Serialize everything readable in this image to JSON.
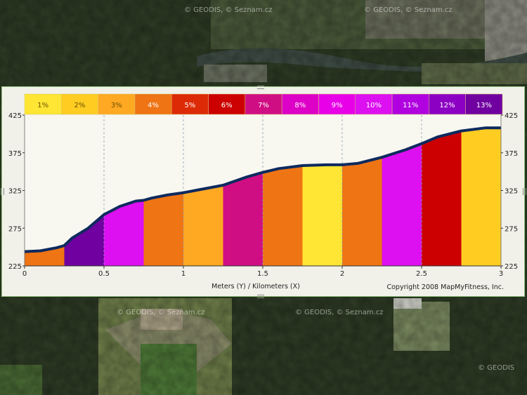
{
  "map": {
    "watermark": "© GEODIS, © Seznam.cz",
    "watermark_short": "© GEODIS",
    "colors": {
      "forest": "#28361f",
      "field": "#6a7a4c",
      "river": "#3b4a41",
      "town": "#8a8a7a"
    }
  },
  "grade_legend": [
    {
      "label": "1%",
      "color": "#ffe534"
    },
    {
      "label": "2%",
      "color": "#ffcc22"
    },
    {
      "label": "3%",
      "color": "#ffa822"
    },
    {
      "label": "4%",
      "color": "#ef7414"
    },
    {
      "label": "5%",
      "color": "#dd2a06"
    },
    {
      "label": "6%",
      "color": "#cc0000"
    },
    {
      "label": "7%",
      "color": "#d00e84"
    },
    {
      "label": "8%",
      "color": "#dd00c6"
    },
    {
      "label": "9%",
      "color": "#e800e8"
    },
    {
      "label": "10%",
      "color": "#dc10f0"
    },
    {
      "label": "11%",
      "color": "#b000e0"
    },
    {
      "label": "12%",
      "color": "#8c00c4"
    },
    {
      "label": "13%",
      "color": "#7000a0"
    }
  ],
  "chart_data": {
    "type": "area",
    "xlabel": "Meters (Y) / Kilometers (X)",
    "copyright": "Copyright 2008 MapMyFitness, Inc.",
    "xlim": [
      0,
      3
    ],
    "ylim": [
      225,
      425
    ],
    "xticks": [
      "0",
      "0.5",
      "1",
      "1.5",
      "2",
      "2.5",
      "3"
    ],
    "yticks": [
      "425",
      "375",
      "325",
      "275",
      "225"
    ],
    "ytick_values": [
      425,
      375,
      325,
      275,
      225
    ],
    "grid": "vertical dashed",
    "profile": {
      "x": [
        0,
        0.1,
        0.2,
        0.25,
        0.3,
        0.4,
        0.5,
        0.6,
        0.7,
        0.75,
        0.8,
        0.9,
        1.0,
        1.1,
        1.25,
        1.4,
        1.5,
        1.6,
        1.75,
        1.9,
        2.0,
        2.1,
        2.25,
        2.4,
        2.5,
        2.6,
        2.75,
        2.9,
        3.0
      ],
      "y": [
        244,
        245,
        249,
        252,
        262,
        275,
        293,
        304,
        311,
        312,
        315,
        319,
        322,
        326,
        332,
        343,
        349,
        354,
        358,
        359,
        359,
        361,
        369,
        379,
        387,
        396,
        404,
        408,
        408
      ]
    },
    "segments": [
      {
        "start": 0.0,
        "end": 0.25,
        "grade": "4%"
      },
      {
        "start": 0.25,
        "end": 0.5,
        "grade": "13%"
      },
      {
        "start": 0.5,
        "end": 0.75,
        "grade": "10%"
      },
      {
        "start": 0.75,
        "end": 1.0,
        "grade": "4%"
      },
      {
        "start": 1.0,
        "end": 1.25,
        "grade": "3%"
      },
      {
        "start": 1.25,
        "end": 1.5,
        "grade": "7%"
      },
      {
        "start": 1.5,
        "end": 1.75,
        "grade": "4%"
      },
      {
        "start": 1.75,
        "end": 2.0,
        "grade": "1%"
      },
      {
        "start": 2.0,
        "end": 2.25,
        "grade": "4%"
      },
      {
        "start": 2.25,
        "end": 2.5,
        "grade": "10%"
      },
      {
        "start": 2.5,
        "end": 2.75,
        "grade": "6%"
      },
      {
        "start": 2.75,
        "end": 3.0,
        "grade": "2%"
      }
    ],
    "colors": {
      "profile_line": "#0d2a5e",
      "plot_bg": "#f8f7f0",
      "gridline": "#8aa0b0"
    }
  }
}
